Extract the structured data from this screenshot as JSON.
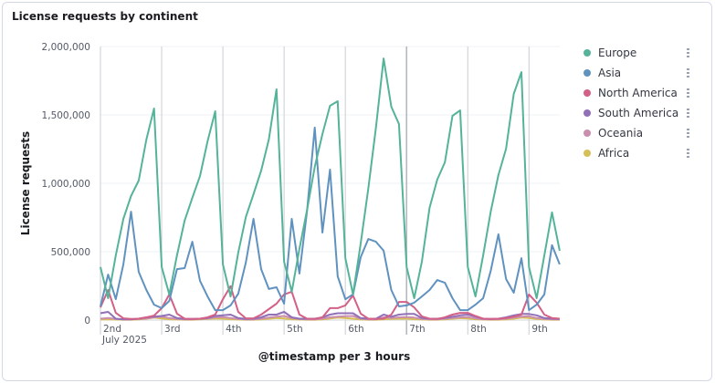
{
  "panel": {
    "title": "License requests by continent"
  },
  "chart_data": {
    "type": "line",
    "title": "License requests by continent",
    "xlabel": "@timestamp per 3 hours",
    "ylabel": "License requests",
    "x_start": "2025-07-02 00:00",
    "interval_hours": 3,
    "ylim": [
      0,
      2000000
    ],
    "yticks": [
      0,
      500000,
      1000000,
      1500000,
      2000000
    ],
    "ytick_labels": [
      "0",
      "500,000",
      "1,000,000",
      "1,500,000",
      "2,000,000"
    ],
    "xtick_labels": [
      "2nd",
      "3rd",
      "4th",
      "5th",
      "6th",
      "7th",
      "8th",
      "9th"
    ],
    "xtick_sublabel": "July 2025",
    "grid": true,
    "legend_placement": "right",
    "series": [
      {
        "name": "Europe",
        "color": "#54B399",
        "values": [
          387000,
          160000,
          473000,
          740000,
          907000,
          1020000,
          1320000,
          1547000,
          387000,
          187000,
          473000,
          727000,
          893000,
          1053000,
          1307000,
          1527000,
          407000,
          173000,
          493000,
          753000,
          920000,
          1093000,
          1320000,
          1687000,
          427000,
          207000,
          520000,
          807000,
          1120000,
          1360000,
          1567000,
          1600000,
          453000,
          187000,
          560000,
          960000,
          1407000,
          1913000,
          1560000,
          1433000,
          387000,
          160000,
          427000,
          820000,
          1027000,
          1153000,
          1493000,
          1533000,
          387000,
          173000,
          473000,
          793000,
          1060000,
          1253000,
          1653000,
          1813000,
          387000,
          160000,
          473000,
          787000,
          507000
        ]
      },
      {
        "name": "Asia",
        "color": "#6092C0",
        "values": [
          100000,
          333000,
          153000,
          407000,
          793000,
          353000,
          220000,
          113000,
          87000,
          140000,
          373000,
          380000,
          573000,
          287000,
          173000,
          73000,
          73000,
          107000,
          193000,
          420000,
          740000,
          373000,
          227000,
          240000,
          120000,
          740000,
          340000,
          800000,
          1407000,
          640000,
          1100000,
          320000,
          153000,
          187000,
          460000,
          593000,
          573000,
          507000,
          220000,
          100000,
          107000,
          127000,
          173000,
          220000,
          293000,
          273000,
          160000,
          73000,
          73000,
          113000,
          160000,
          360000,
          627000,
          300000,
          200000,
          453000,
          73000,
          113000,
          187000,
          547000,
          407000
        ]
      },
      {
        "name": "North America",
        "color": "#D36086",
        "values": [
          93000,
          220000,
          53000,
          13000,
          8000,
          10000,
          20000,
          33000,
          87000,
          187000,
          47000,
          10000,
          8000,
          10000,
          20000,
          40000,
          153000,
          247000,
          60000,
          13000,
          13000,
          40000,
          80000,
          120000,
          187000,
          207000,
          40000,
          10000,
          8000,
          20000,
          87000,
          87000,
          107000,
          180000,
          47000,
          10000,
          8000,
          10000,
          40000,
          133000,
          133000,
          93000,
          27000,
          10000,
          8000,
          20000,
          40000,
          53000,
          53000,
          30000,
          10000,
          8000,
          10000,
          15000,
          25000,
          40000,
          187000,
          127000,
          40000,
          15000,
          10000
        ]
      },
      {
        "name": "South America",
        "color": "#9170B8",
        "values": [
          50000,
          60000,
          10000,
          5000,
          5000,
          10000,
          20000,
          25000,
          30000,
          40000,
          15000,
          8000,
          8000,
          10000,
          15000,
          30000,
          35000,
          40000,
          15000,
          8000,
          10000,
          20000,
          40000,
          40000,
          60000,
          20000,
          10000,
          10000,
          10000,
          20000,
          40000,
          50000,
          50000,
          50000,
          15000,
          10000,
          10000,
          40000,
          25000,
          40000,
          45000,
          45000,
          15000,
          10000,
          10000,
          15000,
          25000,
          35000,
          40000,
          25000,
          10000,
          8000,
          10000,
          20000,
          35000,
          45000,
          45000,
          35000,
          15000,
          10000,
          8000
        ]
      },
      {
        "name": "Oceania",
        "color": "#CA8EAE",
        "values": [
          10000,
          15000,
          8000,
          5000,
          5000,
          8000,
          12000,
          20000,
          25000,
          15000,
          8000,
          5000,
          5000,
          8000,
          12000,
          20000,
          22000,
          15000,
          8000,
          5000,
          5000,
          10000,
          18000,
          25000,
          30000,
          15000,
          8000,
          5000,
          5000,
          10000,
          20000,
          25000,
          28000,
          30000,
          10000,
          5000,
          5000,
          20000,
          15000,
          20000,
          22000,
          18000,
          8000,
          5000,
          5000,
          10000,
          15000,
          20000,
          22000,
          12000,
          6000,
          5000,
          6000,
          10000,
          18000,
          25000,
          28000,
          15000,
          8000,
          6000,
          5000
        ]
      },
      {
        "name": "Africa",
        "color": "#D6BF57",
        "values": [
          5000,
          6000,
          4000,
          3000,
          3000,
          5000,
          10000,
          18000,
          12000,
          6000,
          4000,
          3000,
          3000,
          5000,
          8000,
          12000,
          10000,
          6000,
          4000,
          3000,
          3000,
          5000,
          10000,
          15000,
          12000,
          6000,
          4000,
          3000,
          3000,
          5000,
          12000,
          18000,
          15000,
          10000,
          4000,
          3000,
          3000,
          6000,
          8000,
          10000,
          10000,
          6000,
          4000,
          3000,
          3000,
          5000,
          10000,
          14000,
          12000,
          6000,
          4000,
          3000,
          3000,
          5000,
          10000,
          18000,
          15000,
          8000,
          4000,
          3000,
          3000
        ]
      }
    ]
  },
  "legend": {
    "menu_icon": "vertical-dots-icon"
  }
}
